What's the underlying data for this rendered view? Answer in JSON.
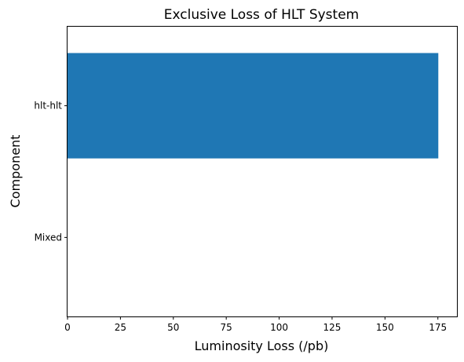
{
  "chart_data": {
    "type": "bar",
    "orientation": "horizontal",
    "title": "Exclusive Loss of HLT System",
    "xlabel": "Luminosity Loss (/pb)",
    "ylabel": "Component",
    "categories": [
      "hlt-hlt",
      "Mixed"
    ],
    "values": [
      175.2,
      0
    ],
    "xlim": [
      0,
      184
    ],
    "xticks": [
      0,
      25,
      50,
      75,
      100,
      125,
      150,
      175
    ],
    "grid": false,
    "legend": "none",
    "bar_color": "#1f77b4"
  }
}
